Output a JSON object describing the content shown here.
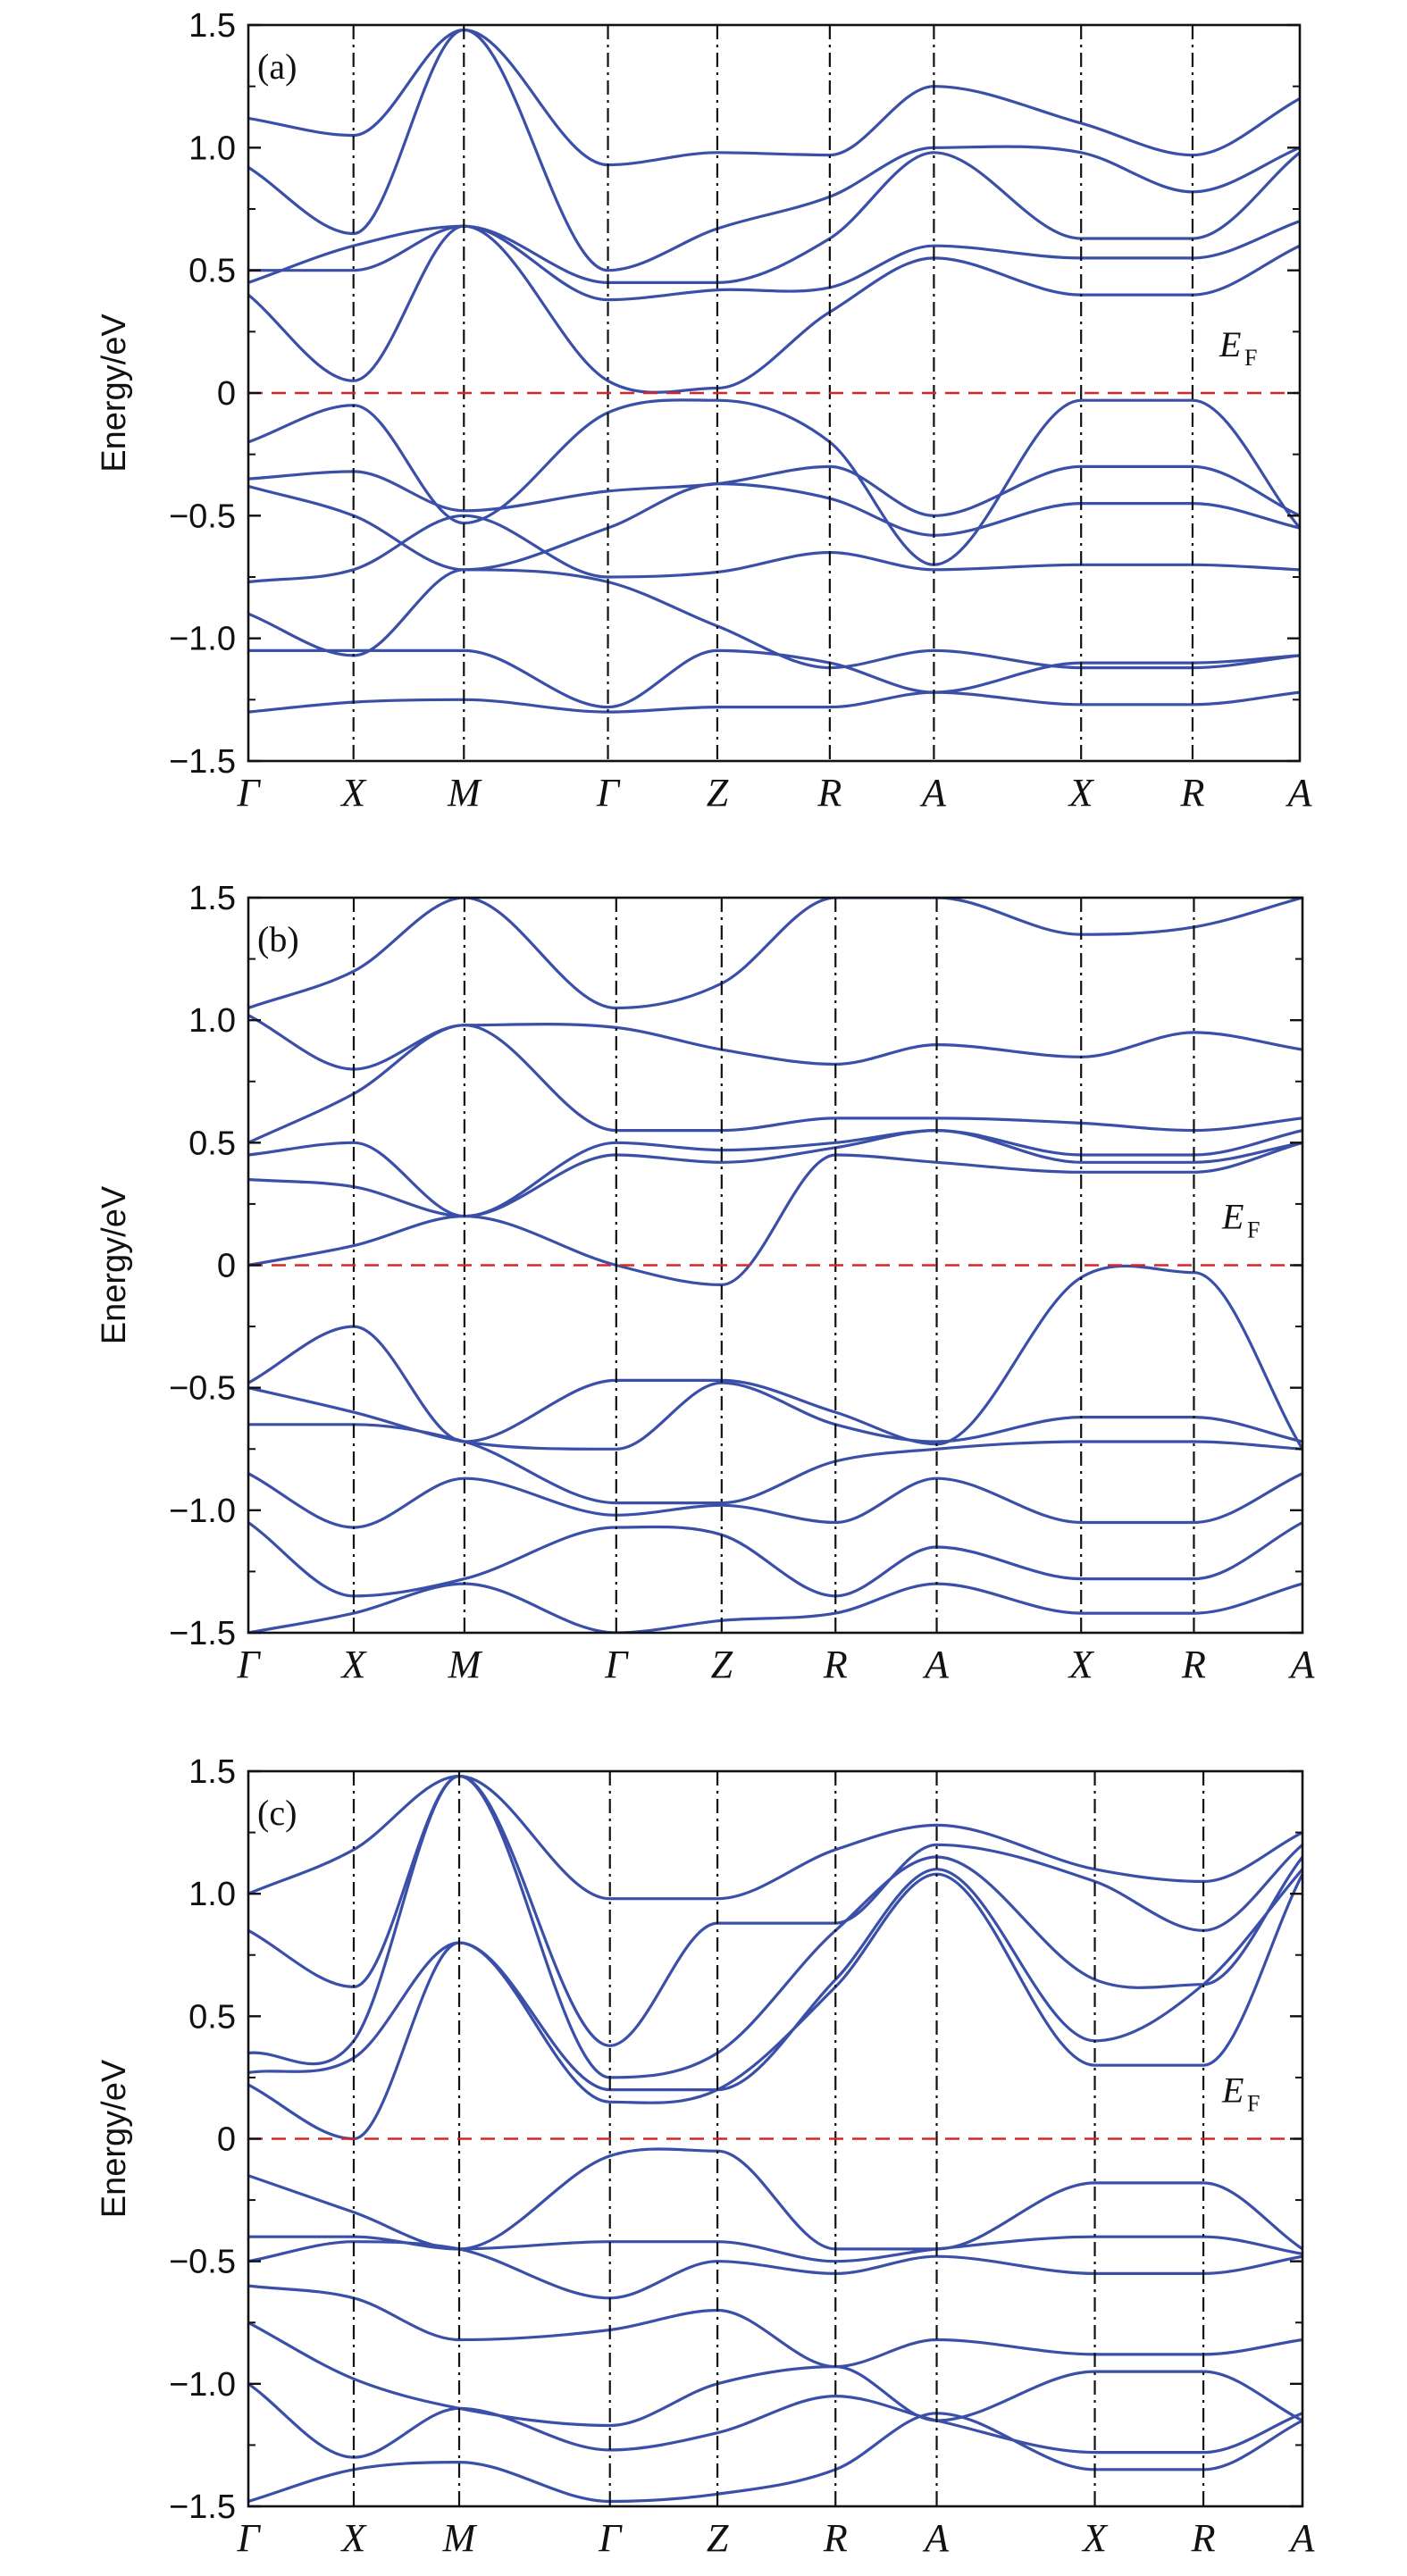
{
  "figure": {
    "line_color": "#3a4fa8",
    "fermi_color": "#d62728",
    "sym_line_color": "#111111"
  },
  "chart_data": [
    {
      "type": "line",
      "panel_label": "(a)",
      "ylabel": "Energy/eV",
      "ylim": [
        -1.5,
        1.5
      ],
      "yticks": [
        -1.5,
        -1.0,
        -0.5,
        0,
        0.5,
        1.0,
        1.5
      ],
      "ytick_labels": [
        "−1.5",
        "−1.0",
        "−0.5",
        "0",
        "0.5",
        "1.0",
        "1.5"
      ],
      "fermi_level": 0,
      "fermi_label": "E",
      "fermi_sub": "F",
      "kpath": {
        "labels": [
          "Γ",
          "X",
          "M",
          "Γ",
          "Z",
          "R",
          "A",
          "X",
          "R",
          "A"
        ],
        "positions": [
          0,
          0.1,
          0.205,
          0.342,
          0.446,
          0.553,
          0.652,
          0.792,
          0.898,
          1.0
        ]
      },
      "bands": [
        [
          -1.3,
          -1.26,
          -1.25,
          -1.3,
          -1.28,
          -1.28,
          -1.22,
          -1.27,
          -1.27,
          -1.22
        ],
        [
          -1.05,
          -1.05,
          -1.05,
          -1.28,
          -1.05,
          -1.1,
          -1.22,
          -1.1,
          -1.1,
          -1.07
        ],
        [
          -0.9,
          -1.07,
          -0.72,
          -0.77,
          -0.95,
          -1.12,
          -1.05,
          -1.12,
          -1.12,
          -1.07
        ],
        [
          -0.77,
          -0.72,
          -0.5,
          -0.75,
          -0.73,
          -0.65,
          -0.72,
          -0.7,
          -0.7,
          -0.72
        ],
        [
          -0.38,
          -0.5,
          -0.72,
          -0.55,
          -0.37,
          -0.43,
          -0.58,
          -0.45,
          -0.45,
          -0.55
        ],
        [
          -0.35,
          -0.32,
          -0.48,
          -0.4,
          -0.37,
          -0.3,
          -0.5,
          -0.3,
          -0.3,
          -0.5
        ],
        [
          -0.2,
          -0.05,
          -0.53,
          -0.08,
          -0.03,
          -0.2,
          -0.7,
          -0.03,
          -0.03,
          -0.55
        ],
        [
          0.4,
          0.05,
          0.68,
          0.05,
          0.02,
          0.33,
          0.55,
          0.4,
          0.4,
          0.6
        ],
        [
          0.45,
          0.6,
          0.68,
          0.38,
          0.42,
          0.43,
          0.6,
          0.55,
          0.55,
          0.7
        ],
        [
          0.5,
          0.5,
          0.68,
          0.45,
          0.45,
          0.63,
          0.98,
          0.63,
          0.63,
          0.98
        ],
        [
          0.92,
          0.65,
          1.48,
          0.5,
          0.67,
          0.8,
          1.0,
          0.98,
          0.82,
          1.0
        ],
        [
          1.12,
          1.05,
          1.48,
          0.93,
          0.98,
          0.97,
          1.25,
          1.1,
          0.97,
          1.2
        ]
      ]
    },
    {
      "type": "line",
      "panel_label": "(b)",
      "ylabel": "Energy/eV",
      "ylim": [
        -1.5,
        1.5
      ],
      "yticks": [
        -1.5,
        -1.0,
        -0.5,
        0,
        0.5,
        1.0,
        1.5
      ],
      "ytick_labels": [
        "−1.5",
        "−1.0",
        "−0.5",
        "0",
        "0.5",
        "1.0",
        "1.5"
      ],
      "fermi_level": 0,
      "fermi_label": "E",
      "fermi_sub": "F",
      "kpath": {
        "labels": [
          "Γ",
          "X",
          "M",
          "Γ",
          "Z",
          "R",
          "A",
          "X",
          "R",
          "A"
        ],
        "positions": [
          0,
          0.1,
          0.205,
          0.349,
          0.449,
          0.557,
          0.653,
          0.79,
          0.897,
          1.0
        ]
      },
      "bands": [
        [
          -1.5,
          -1.42,
          -1.3,
          -1.5,
          -1.45,
          -1.42,
          -1.3,
          -1.42,
          -1.42,
          -1.3
        ],
        [
          -1.05,
          -1.35,
          -1.28,
          -1.07,
          -1.1,
          -1.35,
          -1.15,
          -1.28,
          -1.28,
          -1.05
        ],
        [
          -0.85,
          -1.07,
          -0.87,
          -1.02,
          -0.98,
          -1.05,
          -0.87,
          -1.05,
          -1.05,
          -0.85
        ],
        [
          -0.65,
          -0.65,
          -0.72,
          -0.97,
          -0.97,
          -0.8,
          -0.75,
          -0.72,
          -0.72,
          -0.75
        ],
        [
          -0.5,
          -0.6,
          -0.72,
          -0.75,
          -0.48,
          -0.65,
          -0.72,
          -0.62,
          -0.62,
          -0.72
        ],
        [
          -0.48,
          -0.25,
          -0.72,
          -0.47,
          -0.47,
          -0.6,
          -0.73,
          -0.05,
          -0.03,
          -0.75
        ],
        [
          0.0,
          0.08,
          0.2,
          0.0,
          -0.08,
          0.45,
          0.42,
          0.38,
          0.38,
          0.5
        ],
        [
          0.35,
          0.32,
          0.2,
          0.45,
          0.42,
          0.48,
          0.55,
          0.42,
          0.42,
          0.5
        ],
        [
          0.45,
          0.5,
          0.2,
          0.5,
          0.47,
          0.5,
          0.55,
          0.45,
          0.45,
          0.55
        ],
        [
          0.5,
          0.7,
          0.98,
          0.55,
          0.55,
          0.6,
          0.6,
          0.58,
          0.55,
          0.6
        ],
        [
          1.02,
          0.8,
          0.98,
          0.97,
          0.88,
          0.82,
          0.9,
          0.85,
          0.95,
          0.88
        ],
        [
          1.05,
          1.2,
          1.5,
          1.05,
          1.15,
          1.5,
          1.5,
          1.35,
          1.38,
          1.5
        ]
      ]
    },
    {
      "type": "line",
      "panel_label": "(c)",
      "ylabel": "Energy/eV",
      "ylim": [
        -1.5,
        1.5
      ],
      "yticks": [
        -1.5,
        -1.0,
        -0.5,
        0,
        0.5,
        1.0,
        1.5
      ],
      "ytick_labels": [
        "−1.5",
        "−1.0",
        "−0.5",
        "0",
        "0.5",
        "1.0",
        "1.5"
      ],
      "fermi_level": 0,
      "fermi_label": "E",
      "fermi_sub": "F",
      "kpath": {
        "labels": [
          "Γ",
          "X",
          "M",
          "Γ",
          "Z",
          "R",
          "A",
          "X",
          "R",
          "A"
        ],
        "positions": [
          0,
          0.1,
          0.2,
          0.343,
          0.445,
          0.557,
          0.653,
          0.803,
          0.906,
          1.0
        ]
      },
      "bands": [
        [
          -1.48,
          -1.35,
          -1.32,
          -1.48,
          -1.45,
          -1.35,
          -1.12,
          -1.35,
          -1.35,
          -1.15
        ],
        [
          -1.0,
          -1.3,
          -1.1,
          -1.27,
          -1.2,
          -1.05,
          -1.15,
          -1.28,
          -1.28,
          -1.12
        ],
        [
          -0.75,
          -0.98,
          -1.1,
          -1.17,
          -1.0,
          -0.93,
          -1.15,
          -0.95,
          -0.95,
          -1.15
        ],
        [
          -0.6,
          -0.65,
          -0.82,
          -0.78,
          -0.7,
          -0.93,
          -0.82,
          -0.88,
          -0.88,
          -0.82
        ],
        [
          -0.5,
          -0.42,
          -0.45,
          -0.65,
          -0.5,
          -0.55,
          -0.48,
          -0.55,
          -0.55,
          -0.48
        ],
        [
          -0.4,
          -0.4,
          -0.45,
          -0.42,
          -0.42,
          -0.5,
          -0.45,
          -0.4,
          -0.4,
          -0.47
        ],
        [
          -0.15,
          -0.3,
          -0.45,
          -0.07,
          -0.05,
          -0.45,
          -0.45,
          -0.18,
          -0.18,
          -0.45
        ],
        [
          0.22,
          0.0,
          0.8,
          0.15,
          0.2,
          0.62,
          1.08,
          0.3,
          0.3,
          1.08
        ],
        [
          0.27,
          0.33,
          0.8,
          0.2,
          0.2,
          0.65,
          1.1,
          0.4,
          0.63,
          1.1
        ],
        [
          0.35,
          0.4,
          1.48,
          0.25,
          0.35,
          0.85,
          1.15,
          0.65,
          0.63,
          1.15
        ],
        [
          0.85,
          0.62,
          1.48,
          0.38,
          0.88,
          0.88,
          1.2,
          1.05,
          0.85,
          1.2
        ],
        [
          1.0,
          1.18,
          1.48,
          0.98,
          0.98,
          1.18,
          1.28,
          1.1,
          1.05,
          1.25
        ]
      ]
    }
  ]
}
